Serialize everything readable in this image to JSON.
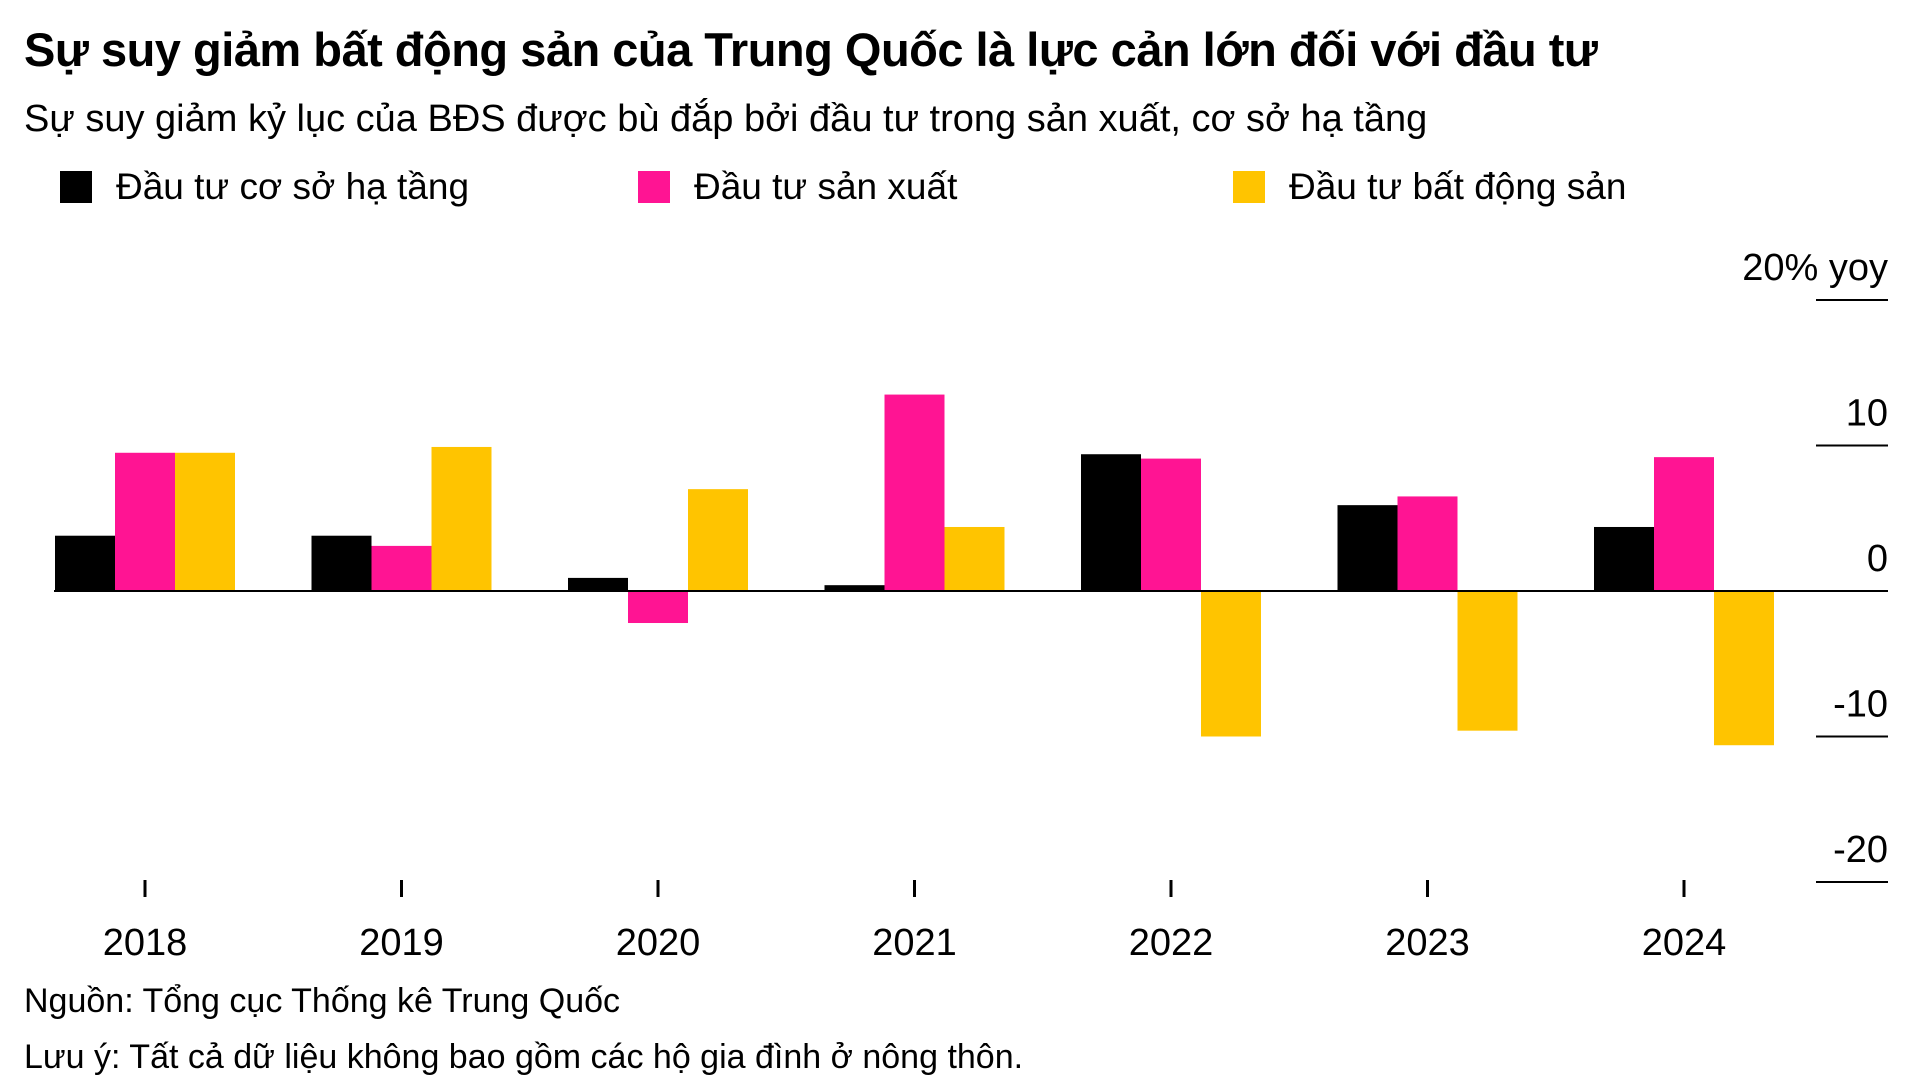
{
  "title": "Sự suy giảm bất động sản của Trung Quốc là lực cản lớn đối với đầu tư",
  "subtitle": "Sự suy giảm kỷ lục của BĐS được bù đắp bởi đầu tư trong sản xuất, cơ sở hạ tầng",
  "legend": [
    {
      "label": "Đầu tư cơ sở hạ tầng",
      "color": "#000000"
    },
    {
      "label": "Đầu tư sản xuất",
      "color": "#FF1493"
    },
    {
      "label": "Đầu tư bất động sản",
      "color": "#FFC400"
    }
  ],
  "footer": {
    "source": "Nguồn: Tổng cục Thống kê Trung Quốc",
    "note": "Lưu ý: Tất cả dữ liệu không bao gồm các hộ gia đình ở nông thôn."
  },
  "chart_data": {
    "type": "bar",
    "title": "Sự suy giảm bất động sản của Trung Quốc là lực cản lớn đối với đầu tư",
    "subtitle": "Sự suy giảm kỷ lục của BĐS được bù đắp bởi đầu tư trong sản xuất, cơ sở hạ tầng",
    "categories": [
      "2018",
      "2019",
      "2020",
      "2021",
      "2022",
      "2023",
      "2024"
    ],
    "series": [
      {
        "name": "Đầu tư cơ sở hạ tầng",
        "color": "#000000",
        "values": [
          3.8,
          3.8,
          0.9,
          0.4,
          9.4,
          5.9,
          4.4
        ]
      },
      {
        "name": "Đầu tư sản xuất",
        "color": "#FF1493",
        "values": [
          9.5,
          3.1,
          -2.2,
          13.5,
          9.1,
          6.5,
          9.2
        ]
      },
      {
        "name": "Đầu tư bất động sản",
        "color": "#FFC400",
        "values": [
          9.5,
          9.9,
          7.0,
          4.4,
          -10.0,
          -9.6,
          -10.6
        ]
      }
    ],
    "y_ticks": [
      {
        "value": 20,
        "label": "20% yoy"
      },
      {
        "value": 10,
        "label": "10"
      },
      {
        "value": 0,
        "label": "0"
      },
      {
        "value": -10,
        "label": "-10"
      },
      {
        "value": -20,
        "label": "-20"
      }
    ],
    "ylim": [
      -20,
      20
    ],
    "xlabel": "",
    "ylabel": "% yoy",
    "legend_position": "top"
  }
}
